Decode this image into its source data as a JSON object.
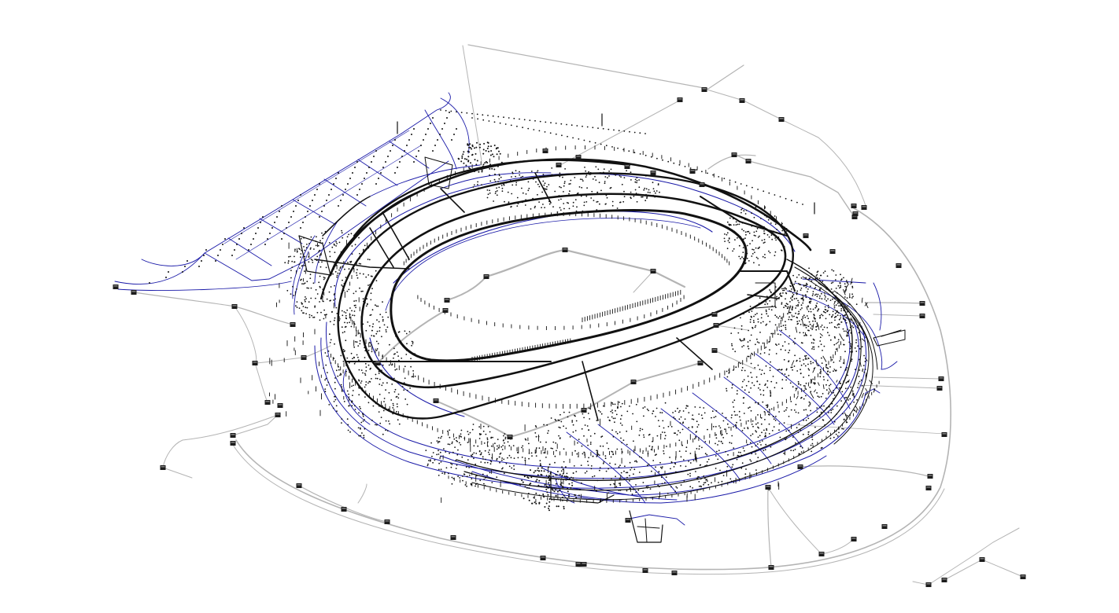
{
  "app": {
    "title": ""
  },
  "model_view": {
    "subject": "stadium-utility-network",
    "projection": "isometric",
    "background_color": "#ffffff",
    "layers": [
      {
        "id": "piping-primary",
        "color": "#111111",
        "weight": "heavy"
      },
      {
        "id": "piping-secondary",
        "color": "#1a1aa8",
        "weight": "thin"
      },
      {
        "id": "site-routes",
        "color": "#b4b4b4",
        "weight": "medium"
      },
      {
        "id": "fixtures",
        "color": "#111111",
        "weight": "point"
      }
    ],
    "node_icon": "junction-box-icon"
  }
}
